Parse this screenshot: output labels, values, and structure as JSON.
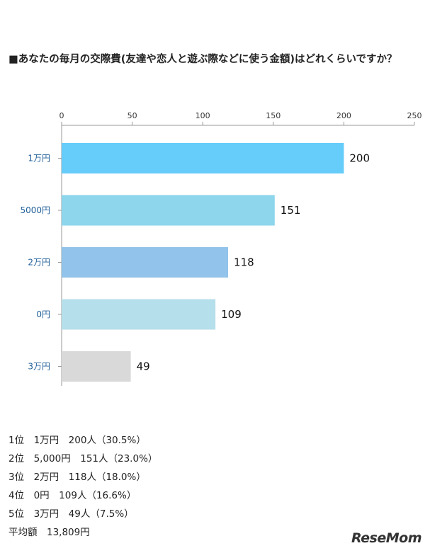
{
  "chart_data": {
    "type": "bar",
    "orientation": "horizontal",
    "title": "■あなたの毎月の交際費(友達や恋人と遊ぶ際などに使う金額)はどれくらいですか？",
    "categories": [
      "1万円",
      "5000円",
      "2万円",
      "0円",
      "3万円"
    ],
    "values": [
      200,
      151,
      118,
      109,
      49
    ],
    "bar_colors": [
      "#66ccfa",
      "#8dd6ec",
      "#92c3ea",
      "#b5dfea",
      "#d9d9d9"
    ],
    "xlim": [
      0,
      250
    ],
    "xticks": [
      0,
      50,
      100,
      150,
      200,
      250
    ],
    "xaxis_position": "top",
    "grid": false,
    "legend": "none"
  },
  "summary": [
    "1位　1万円　200人（30.5%）",
    "2位　5,000円　151人（23.0%）",
    "3位　2万円　118人（18.0%）",
    "4位　0円　109人（16.6%）",
    "5位　3万円　49人（7.5%）",
    "平均額　13,809円"
  ],
  "watermark": "ReseMom"
}
